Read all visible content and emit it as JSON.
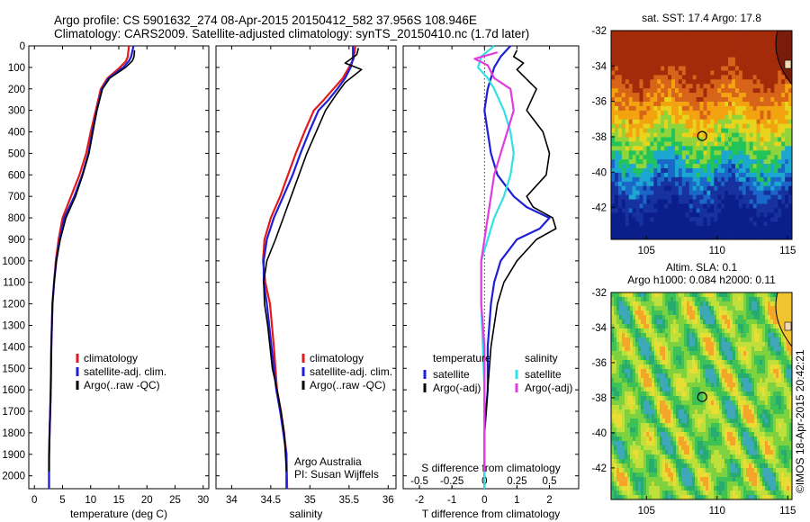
{
  "header": {
    "line1": "Argo profile: CS 5901632_274 08-Apr-2015 20150412_582 37.956S 108.946E",
    "line2": "Climatology: CARS2009. Satellite-adjusted climatology: synTS_20150410.nc (1.7d later)"
  },
  "colors": {
    "red": "#e31a1c",
    "blue": "#1f1fd6",
    "black": "#000000",
    "cyan": "#33e0e6",
    "magenta": "#e03ce0"
  },
  "chart_data": [
    {
      "type": "line",
      "xlabel": "temperature (deg C)",
      "xlim": [
        -1,
        31
      ],
      "ylim": [
        2060,
        0
      ],
      "xticks": [
        0,
        5,
        10,
        15,
        20,
        25,
        30
      ],
      "yticks": [
        0,
        100,
        200,
        300,
        400,
        500,
        600,
        700,
        800,
        900,
        1000,
        1100,
        1200,
        1300,
        1400,
        1500,
        1600,
        1700,
        1800,
        1900,
        2000
      ],
      "legend": [
        "climatology",
        "satellite-adj. clim.",
        "Argo(..raw -QC)"
      ],
      "legend_position": "lower-center",
      "series": [
        {
          "name": "climatology",
          "color": "red",
          "x": [
            16.8,
            16.6,
            16.3,
            15.2,
            13.0,
            11.8,
            10.9,
            10.0,
            9.2,
            8.0,
            6.5,
            5.0,
            4.3,
            3.8,
            3.5,
            3.2,
            3.0,
            2.9,
            2.8,
            2.7,
            2.6,
            2.6
          ],
          "y": [
            0,
            50,
            70,
            100,
            150,
            200,
            300,
            400,
            500,
            600,
            700,
            800,
            900,
            1000,
            1100,
            1200,
            1400,
            1600,
            1700,
            1800,
            1900,
            2060
          ]
        },
        {
          "name": "satellite-adj. clim.",
          "color": "blue",
          "x": [
            17.6,
            17.2,
            16.8,
            15.8,
            13.2,
            12.0,
            11.1,
            10.3,
            9.6,
            8.5,
            7.1,
            5.3,
            4.5,
            3.9,
            3.5,
            3.2,
            3.0,
            2.9,
            2.8,
            2.7,
            2.6,
            2.6
          ],
          "y": [
            0,
            50,
            70,
            100,
            150,
            200,
            300,
            400,
            500,
            600,
            700,
            800,
            900,
            1000,
            1100,
            1200,
            1400,
            1600,
            1700,
            1800,
            1900,
            2060
          ]
        },
        {
          "name": "Argo(..raw -QC)",
          "color": "black",
          "x": [
            17.8,
            17.7,
            17.4,
            16.2,
            13.4,
            12.1,
            11.1,
            10.4,
            9.7,
            8.6,
            7.3,
            5.6,
            4.6,
            3.9,
            3.5,
            3.2,
            3.0,
            2.9,
            2.8,
            2.7,
            2.6
          ],
          "y": [
            20,
            50,
            70,
            100,
            150,
            200,
            300,
            400,
            500,
            600,
            700,
            800,
            900,
            1000,
            1100,
            1200,
            1400,
            1600,
            1700,
            1800,
            1980
          ]
        }
      ]
    },
    {
      "type": "line",
      "xlabel": "salinity",
      "xlim": [
        33.8,
        36.1
      ],
      "ylim": [
        2060,
        0
      ],
      "xticks": [
        34,
        34.5,
        35,
        35.5,
        36
      ],
      "xticklabels": [
        "34",
        "34.5",
        "35",
        "35.5",
        "36"
      ],
      "legend": [
        "climatology",
        "satellite-adj. clim.",
        "Argo(..raw -QC)"
      ],
      "legend_position": "lower-right",
      "annotation": [
        "Argo Australia",
        "PI: Susan Wijffels"
      ],
      "series": [
        {
          "name": "climatology",
          "color": "red",
          "x": [
            35.58,
            35.56,
            35.5,
            35.42,
            35.3,
            35.18,
            35.05,
            34.93,
            34.82,
            34.72,
            34.62,
            34.5,
            34.42,
            34.4,
            34.43,
            34.49,
            34.54,
            34.58,
            34.63,
            34.67,
            34.7,
            34.71
          ],
          "y": [
            0,
            60,
            100,
            150,
            200,
            250,
            300,
            400,
            500,
            600,
            700,
            800,
            900,
            1000,
            1100,
            1200,
            1400,
            1600,
            1700,
            1800,
            1900,
            2060
          ]
        },
        {
          "name": "satellite-adj. clim.",
          "color": "blue",
          "x": [
            35.55,
            35.55,
            35.52,
            35.45,
            35.35,
            35.24,
            35.11,
            34.99,
            34.88,
            34.78,
            34.66,
            34.54,
            34.45,
            34.41,
            34.41,
            34.45,
            34.51,
            34.57,
            34.62,
            34.66,
            34.7,
            34.7
          ],
          "y": [
            0,
            60,
            100,
            150,
            200,
            250,
            300,
            400,
            500,
            600,
            700,
            800,
            900,
            1000,
            1100,
            1200,
            1400,
            1600,
            1700,
            1800,
            1900,
            2060
          ]
        },
        {
          "name": "Argo(..raw -QC)",
          "color": "black",
          "x": [
            35.62,
            35.6,
            35.45,
            35.66,
            35.45,
            35.33,
            35.2,
            35.08,
            34.96,
            34.86,
            34.76,
            34.66,
            34.56,
            34.45,
            34.41,
            34.42,
            34.46,
            34.52,
            34.58,
            34.63,
            34.67,
            34.7
          ],
          "y": [
            10,
            40,
            80,
            110,
            170,
            230,
            300,
            400,
            500,
            600,
            700,
            800,
            900,
            1000,
            1100,
            1200,
            1300,
            1500,
            1600,
            1700,
            1800,
            1980
          ]
        }
      ]
    },
    {
      "type": "line",
      "xlabel": "T difference from climatology",
      "top_label": "S difference from climatology",
      "xlim": [
        -2.5,
        2.9
      ],
      "ylim": [
        2060,
        0
      ],
      "xticks": [
        -2,
        -1,
        0,
        1,
        2
      ],
      "top_ticks": [
        -0.5,
        -0.25,
        0,
        0.25,
        0.5
      ],
      "top_ticklabels": [
        "-0.5",
        "-0.25",
        "0",
        "0.25",
        "0.5"
      ],
      "zero_line": true,
      "legend_left_title": "temperature",
      "legend_right_title": "salinity",
      "legend": [
        "satellite",
        "Argo(-adj)",
        "satellite",
        "Argo(-adj)"
      ],
      "legend_position": "lower-center",
      "series": [
        {
          "name": "satellite",
          "quantity": "temperature",
          "color": "blue",
          "x": [
            0.8,
            0.5,
            0.3,
            0.2,
            0.1,
            0.0,
            0.1,
            0.2,
            0.4,
            0.9,
            1.3,
            2.0,
            1.7,
            1.0,
            0.5,
            0.3,
            0.2,
            0.1,
            0.1,
            0.0,
            0.0
          ],
          "y": [
            0,
            50,
            100,
            150,
            200,
            300,
            400,
            500,
            600,
            700,
            750,
            800,
            850,
            900,
            1000,
            1100,
            1200,
            1400,
            1600,
            1800,
            2060
          ]
        },
        {
          "name": "Argo(-adj)",
          "quantity": "temperature",
          "color": "black",
          "x": [
            1.0,
            0.9,
            1.2,
            1.0,
            1.6,
            1.3,
            1.8,
            2.0,
            1.9,
            1.3,
            1.5,
            2.1,
            2.2,
            1.6,
            1.0,
            0.6,
            0.4,
            0.2,
            0.1,
            0.0,
            0.0
          ],
          "y": [
            20,
            50,
            80,
            110,
            200,
            300,
            400,
            500,
            600,
            700,
            750,
            800,
            850,
            900,
            1000,
            1100,
            1200,
            1400,
            1600,
            1800,
            1980
          ]
        },
        {
          "name": "satellite",
          "quantity": "salinity",
          "color": "cyan",
          "x": [
            0.3,
            -0.1,
            -0.2,
            0.1,
            0.3,
            0.6,
            0.8,
            0.9,
            0.8,
            0.6,
            0.3,
            0.1,
            -0.1,
            -0.1,
            -0.05,
            0.0,
            0.0
          ],
          "y": [
            0,
            50,
            100,
            150,
            200,
            300,
            400,
            500,
            600,
            700,
            800,
            900,
            1000,
            1200,
            1400,
            1600,
            2060
          ]
        },
        {
          "name": "Argo(-adj)",
          "quantity": "salinity",
          "color": "magenta",
          "x": [
            0.4,
            -0.3,
            0.1,
            0.3,
            0.8,
            0.9,
            0.7,
            0.5,
            0.3,
            0.2,
            0.1,
            0.0,
            -0.1,
            -0.1,
            0.0,
            0.0
          ],
          "y": [
            30,
            60,
            90,
            150,
            200,
            300,
            400,
            500,
            600,
            700,
            800,
            900,
            1000,
            1200,
            1400,
            1980
          ]
        }
      ]
    },
    {
      "type": "heatmap",
      "title": "sat. SST: 17.4 Argo: 17.8",
      "xlim": [
        102.5,
        115.3
      ],
      "ylim": [
        -43.8,
        -32
      ],
      "xticks": [
        105,
        110,
        115
      ],
      "yticks": [
        -32,
        -34,
        -36,
        -38,
        -40,
        -42
      ],
      "marker": {
        "lon": 108.946,
        "lat": -37.956
      }
    },
    {
      "type": "heatmap",
      "title_line1": "Altim. SLA: 0.1",
      "title_line2": "Argo h1000: 0.084 h2000: 0.11",
      "xlim": [
        102.5,
        115.3
      ],
      "ylim": [
        -43.8,
        -32
      ],
      "xticks": [
        105,
        110,
        115
      ],
      "yticks": [
        -32,
        -34,
        -36,
        -38,
        -40,
        -42
      ],
      "marker": {
        "lon": 108.946,
        "lat": -37.956
      }
    }
  ],
  "side_label": "©IMOS 18-Apr-2015 20:42:21"
}
